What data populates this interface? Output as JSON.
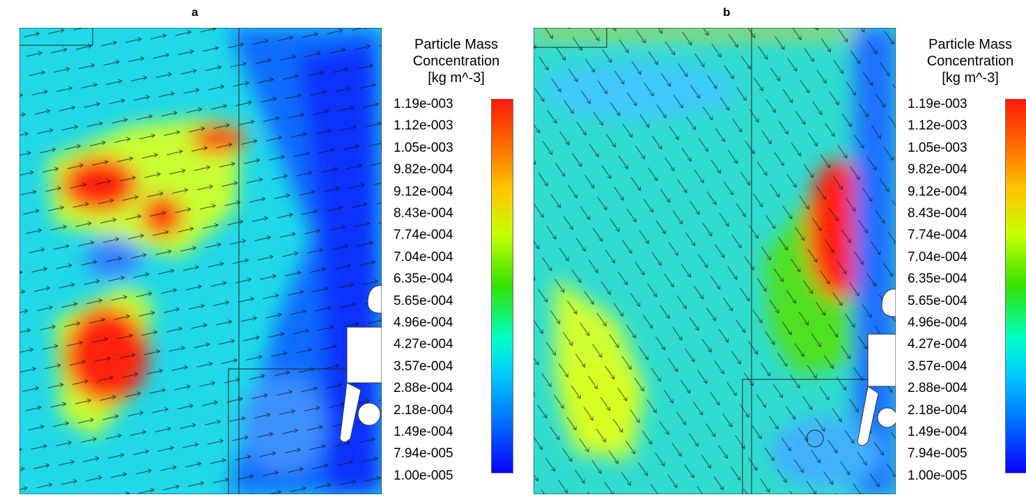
{
  "panels": [
    {
      "label": "a"
    },
    {
      "label": "b"
    }
  ],
  "legend": {
    "title_line1": "Particle Mass",
    "title_line2": "Concentration",
    "title_line3": "[kg m^-3]",
    "ticks": [
      "1.19e-003",
      "1.12e-003",
      "1.05e-003",
      "9.82e-004",
      "9.12e-004",
      "8.43e-004",
      "7.74e-004",
      "7.04e-004",
      "6.35e-004",
      "5.65e-004",
      "4.96e-004",
      "4.27e-004",
      "3.57e-004",
      "2.88e-004",
      "2.18e-004",
      "1.49e-004",
      "7.94e-005",
      "1.00e-005"
    ]
  },
  "colors": {
    "red": "#ff1a0a",
    "yellow": "#e8ff20",
    "green": "#32e000",
    "cyan": "#20e0e0",
    "blue": "#0050ff",
    "deep_blue": "#0a1aff"
  }
}
